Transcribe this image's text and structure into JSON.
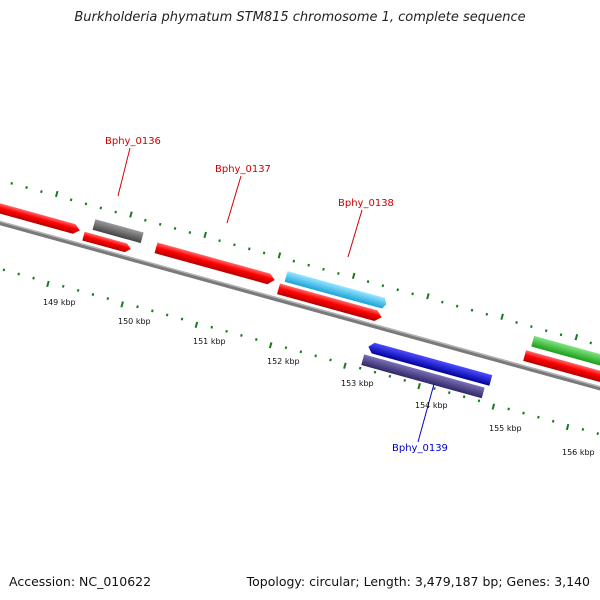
{
  "title": "Burkholderia phymatum STM815 chromosome 1, complete sequence",
  "accession": "Accession: NC_010622",
  "summary": "Topology: circular; Length: 3,479,187 bp; Genes: 3,140",
  "colors": {
    "backbone": "#7a7a7a",
    "cds": "#ff0000",
    "gene_gray": "#6b6b6b",
    "gene_cyan": "#33ccff",
    "gene_blue": "#0000ee",
    "gene_slate": "#4b3f8f",
    "gene_green": "#33cc33",
    "tick": "#1a7a1a",
    "label_red": "#cc0000",
    "label_blue": "#0000cc"
  },
  "scale": {
    "unit": "kbp",
    "ticks": [
      "149 kbp",
      "150 kbp",
      "151 kbp",
      "152 kbp",
      "153 kbp",
      "154 kbp",
      "155 kbp",
      "156 kbp"
    ]
  },
  "genes": [
    {
      "name": "Bphy_0136",
      "color": "label_red"
    },
    {
      "name": "Bphy_0137",
      "color": "label_red"
    },
    {
      "name": "Bphy_0138",
      "color": "label_red"
    },
    {
      "name": "Bphy_0139",
      "color": "label_blue"
    }
  ]
}
